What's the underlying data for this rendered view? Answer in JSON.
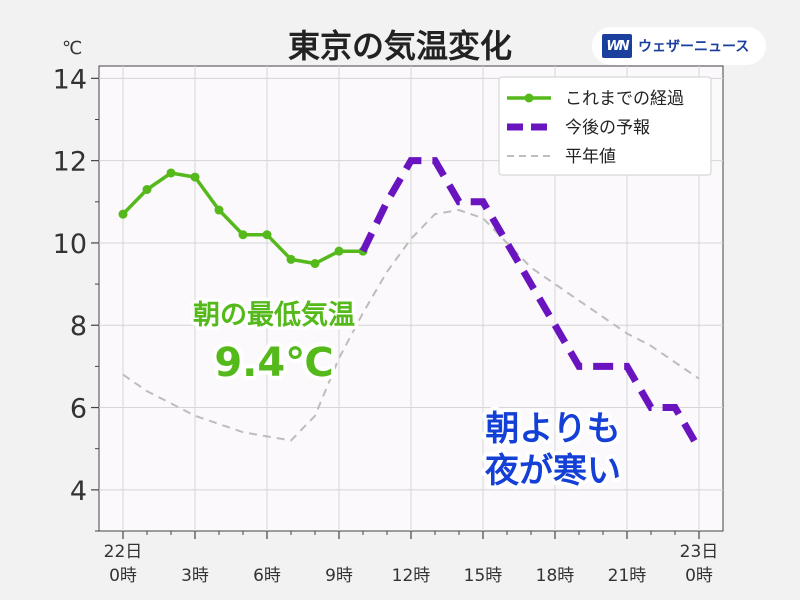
{
  "title": "東京の気温変化",
  "unit_label": "℃",
  "brand": {
    "logo": "WN",
    "name": "ウェザーニュース"
  },
  "annotations": {
    "morning_low_title": "朝の最低気温",
    "morning_low_value": "9.4℃",
    "colder_line1": "朝よりも",
    "colder_line2": "夜が寒い"
  },
  "colors": {
    "observed": "#55b91b",
    "forecast": "#6a14c0",
    "normal": "#bdbdbd",
    "annotation_blue": "#1540d6",
    "plot_bg": "#fbf9fb"
  },
  "chart_data": {
    "type": "line",
    "title": "東京の気温変化",
    "ylabel": "℃",
    "xlim": [
      -1,
      25
    ],
    "ylim": [
      3,
      14.3
    ],
    "yticks": [
      4,
      6,
      8,
      10,
      12,
      14
    ],
    "xticks": [
      {
        "x": 0,
        "line1": "22日",
        "line2": "0時"
      },
      {
        "x": 3,
        "line1": "",
        "line2": "3時"
      },
      {
        "x": 6,
        "line1": "",
        "line2": "6時"
      },
      {
        "x": 9,
        "line1": "",
        "line2": "9時"
      },
      {
        "x": 12,
        "line1": "",
        "line2": "12時"
      },
      {
        "x": 15,
        "line1": "",
        "line2": "15時"
      },
      {
        "x": 18,
        "line1": "",
        "line2": "18時"
      },
      {
        "x": 21,
        "line1": "",
        "line2": "21時"
      },
      {
        "x": 24,
        "line1": "23日",
        "line2": "0時"
      }
    ],
    "grid": true,
    "legend_position": "top-right",
    "series": [
      {
        "name": "これまでの経過",
        "style": "solid-markers",
        "x": [
          0,
          1,
          2,
          3,
          4,
          5,
          6,
          7,
          8,
          9,
          10
        ],
        "y": [
          10.7,
          11.3,
          11.7,
          11.6,
          10.8,
          10.2,
          10.2,
          9.6,
          9.5,
          9.8,
          9.8
        ]
      },
      {
        "name": "今後の予報",
        "style": "dashed-thick",
        "x": [
          10,
          11,
          12,
          13,
          14,
          15,
          16,
          17,
          18,
          19,
          20,
          21,
          22,
          23,
          24
        ],
        "y": [
          9.8,
          11,
          12,
          12,
          11,
          11,
          10,
          9,
          8,
          7,
          7,
          7,
          6,
          6,
          5
        ]
      },
      {
        "name": "平年値",
        "style": "dashed-thin",
        "x": [
          0,
          1,
          2,
          3,
          4,
          5,
          6,
          7,
          8,
          9,
          10,
          11,
          12,
          13,
          14,
          15,
          16,
          17,
          18,
          19,
          20,
          21,
          22,
          23,
          24
        ],
        "y": [
          6.8,
          6.4,
          6.1,
          5.8,
          5.6,
          5.4,
          5.3,
          5.2,
          5.8,
          7.2,
          8.3,
          9.3,
          10.1,
          10.7,
          10.8,
          10.6,
          10.0,
          9.4,
          9.0,
          8.6,
          8.2,
          7.8,
          7.5,
          7.1,
          6.7
        ]
      }
    ]
  }
}
